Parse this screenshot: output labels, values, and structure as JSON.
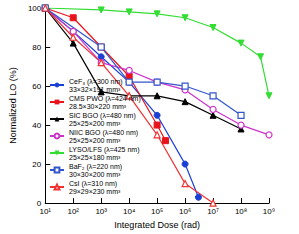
{
  "chart_data": {
    "type": "line",
    "x_label": "Integrated Dose (rad)",
    "y_label": "Normalized LO (%)",
    "log": "x",
    "grid": false,
    "legend": "lower left",
    "xlim": [
      10,
      1000000000
    ],
    "xticks": [
      {
        "value": 10,
        "label": "10¹"
      },
      {
        "value": 100,
        "label": "10²"
      },
      {
        "value": 1000,
        "label": "10³"
      },
      {
        "value": 10000,
        "label": "10⁴"
      },
      {
        "value": 100000,
        "label": "10⁵"
      },
      {
        "value": 1000000,
        "label": "10⁶"
      },
      {
        "value": 10000000,
        "label": "10⁷"
      },
      {
        "value": 100000000,
        "label": "10⁸"
      },
      {
        "value": 1000000000,
        "label": "10⁹"
      }
    ],
    "ylim": [
      0,
      100
    ],
    "yticks": [
      0,
      20,
      40,
      60,
      80,
      100
    ],
    "series": [
      {
        "name": "CeF₃ (λ=300 nm)\n33×32×191 mm³",
        "color": "#1a3fd6",
        "marker": "circle",
        "x": [
          10,
          100,
          1000,
          10000,
          100000,
          1000000,
          3000000
        ],
        "values": [
          100,
          88,
          75,
          62,
          45,
          20,
          3
        ]
      },
      {
        "name": "CMS PWO (λ=424 nm)\n28.5×30×220 mm³",
        "color": "#e8141c",
        "marker": "square",
        "x": [
          10,
          100,
          1000,
          10000,
          100000,
          200000
        ],
        "values": [
          100,
          95,
          80,
          65,
          40,
          32
        ]
      },
      {
        "name": "SIC BGO (λ=480 nm)\n25×25×200 mm³",
        "color": "#000000",
        "marker": "triangle",
        "x": [
          10,
          100,
          1000,
          10000,
          100000,
          1000000,
          10000000,
          100000000
        ],
        "values": [
          100,
          82,
          57,
          55,
          55,
          52,
          45,
          38
        ]
      },
      {
        "name": "NIIC BGO (λ=480 nm)\n25×25×200 mm³",
        "color": "#cc33cc",
        "marker": "circle-open",
        "x": [
          10,
          100,
          1000,
          10000,
          100000,
          1000000,
          10000000,
          100000000,
          1000000000
        ],
        "values": [
          100,
          88,
          72,
          68,
          62,
          58,
          48,
          40,
          35
        ]
      },
      {
        "name": "LYSO/LFS (λ=425 nm)\n25×25×180 mm³",
        "color": "#33dd33",
        "marker": "triangle-down",
        "x": [
          10,
          1000,
          10000,
          100000,
          1000000,
          10000000,
          100000000,
          500000000,
          1000000000
        ],
        "values": [
          100,
          99,
          98,
          97,
          95,
          90,
          82,
          75,
          55
        ]
      },
      {
        "name": "BaF₂ (λ=220 nm)\n30×30×200 mm³",
        "color": "#3355cc",
        "marker": "square-open",
        "x": [
          10,
          1000,
          10000,
          100000,
          1000000,
          10000000,
          100000000
        ],
        "values": [
          100,
          80,
          62,
          62,
          60,
          55,
          45
        ]
      },
      {
        "name": "CsI (λ=310 nm)\n29×29×230 mm³",
        "color": "#ee3333",
        "marker": "triangle-open",
        "x": [
          10,
          100,
          1000,
          10000,
          100000,
          1000000,
          10000000
        ],
        "values": [
          100,
          85,
          72,
          55,
          35,
          10,
          0
        ]
      }
    ]
  }
}
